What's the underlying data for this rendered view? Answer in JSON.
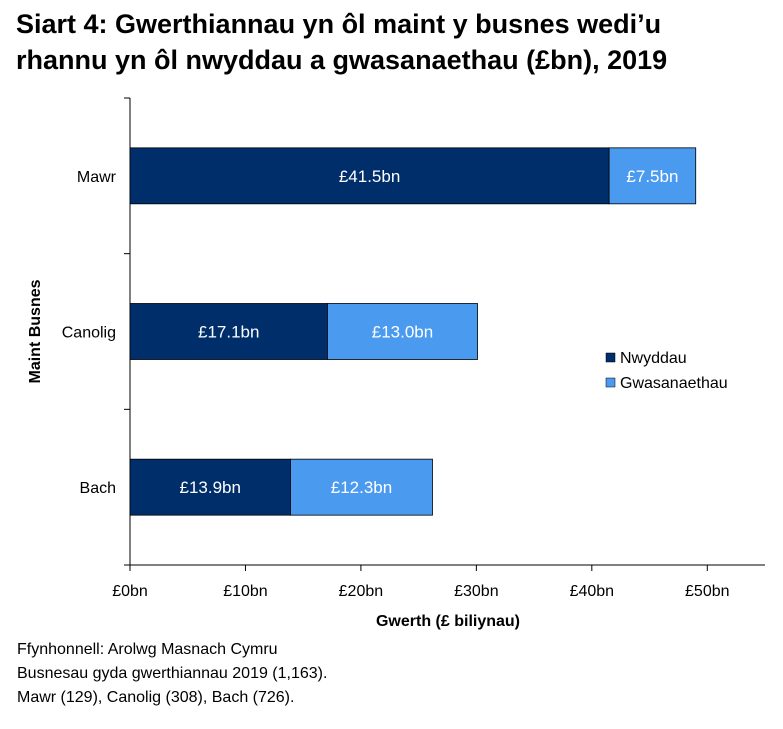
{
  "title_lines": [
    "Siart 4: Gwerthiannau yn ôl maint y busnes wedi’u",
    "rhannu yn ôl nwyddau a gwasanaethau (£bn), 2019"
  ],
  "source_lines": [
    "Ffynhonnell: Arolwg Masnach Cymru",
    "Busnesau gyda gwerthiannau 2019 (1,163).",
    "Mawr (129), Canolig (308), Bach (726)."
  ],
  "colors": {
    "goods": "#002E6B",
    "services": "#4A9BF0",
    "axis": "#000000",
    "label_text": "#ffffff"
  },
  "chart_data": {
    "type": "bar",
    "orientation": "horizontal",
    "stacked": true,
    "title": "Siart 4: Gwerthiannau yn ôl maint y busnes wedi’u rhannu yn ôl nwyddau a gwasanaethau (£bn), 2019",
    "categories": [
      "Mawr",
      "Canolig",
      "Bach"
    ],
    "series": [
      {
        "name": "Nwyddau",
        "color": "#002E6B",
        "values": [
          41.5,
          17.1,
          13.9
        ],
        "labels": [
          "£41.5bn",
          "£17.1bn",
          "£13.9bn"
        ]
      },
      {
        "name": "Gwasanaethau",
        "color": "#4A9BF0",
        "values": [
          7.5,
          13.0,
          12.3
        ],
        "labels": [
          "£7.5bn",
          "£13.0bn",
          "£12.3bn"
        ]
      }
    ],
    "xlabel": "Gwerth (£ biliynau)",
    "ylabel": "Maint Busnes",
    "xlim": [
      0,
      55
    ],
    "xticks": [
      0,
      10,
      20,
      30,
      40,
      50
    ],
    "xtick_labels": [
      "£0bn",
      "£10bn",
      "£20bn",
      "£30bn",
      "£40bn",
      "£50bn"
    ],
    "legend": {
      "position": "right",
      "entries": [
        "Nwyddau",
        "Gwasanaethau"
      ]
    },
    "grid": false
  }
}
